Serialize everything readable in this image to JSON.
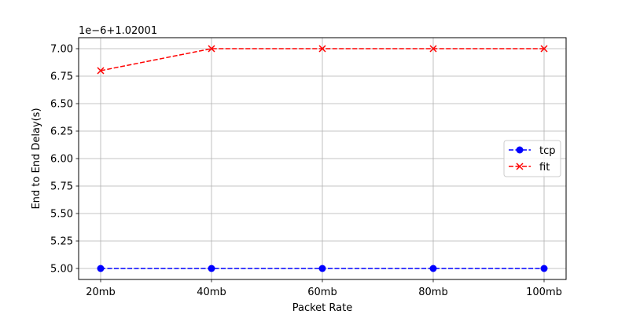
{
  "chart_data": {
    "type": "line",
    "categories": [
      "20mb",
      "40mb",
      "60mb",
      "80mb",
      "100mb"
    ],
    "offset_text": "1e−6+1.02001",
    "xlabel": "Packet Rate",
    "ylabel": "End to End Delay(s)",
    "ylim": [
      4.9,
      7.1
    ],
    "yticks": [
      5.0,
      5.25,
      5.5,
      5.75,
      6.0,
      6.25,
      6.5,
      6.75,
      7.0
    ],
    "ytick_labels": [
      "5.00",
      "5.25",
      "5.50",
      "5.75",
      "6.00",
      "6.25",
      "6.50",
      "6.75",
      "7.00"
    ],
    "grid": true,
    "legend_position": "center-right",
    "series": [
      {
        "name": "tcp",
        "color": "#0000ff",
        "marker": "circle",
        "linestyle": "dashed",
        "values": [
          5.0,
          5.0,
          5.0,
          5.0,
          5.0
        ]
      },
      {
        "name": "fit",
        "color": "#ff0000",
        "marker": "x",
        "linestyle": "dashed",
        "values": [
          6.8,
          7.0,
          7.0,
          7.0,
          7.0
        ]
      }
    ]
  }
}
